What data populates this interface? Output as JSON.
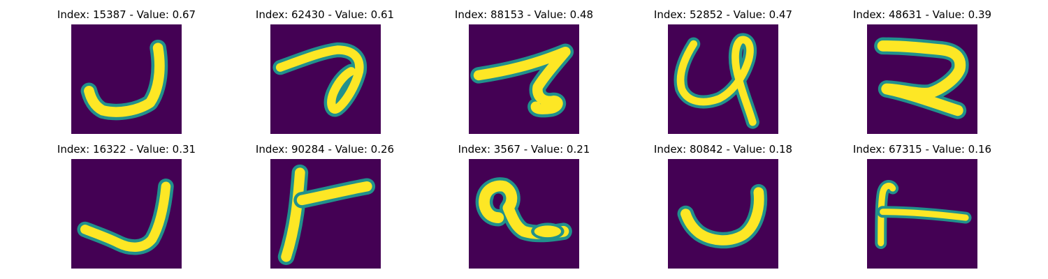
{
  "figure": {
    "colors": {
      "background": "#440154",
      "mid": "#21918c",
      "stroke": "#fde725"
    },
    "panels": [
      {
        "index": "15387",
        "value": "0.67",
        "title": "Index: 15387 - Value: 0.67"
      },
      {
        "index": "62430",
        "value": "0.61",
        "title": "Index: 62430 - Value: 0.61"
      },
      {
        "index": "88153",
        "value": "0.48",
        "title": "Index: 88153 - Value: 0.48"
      },
      {
        "index": "52852",
        "value": "0.47",
        "title": "Index: 52852 - Value: 0.47"
      },
      {
        "index": "48631",
        "value": "0.39",
        "title": "Index: 48631 - Value: 0.39"
      },
      {
        "index": "16322",
        "value": "0.31",
        "title": "Index: 16322 - Value: 0.31"
      },
      {
        "index": "90284",
        "value": "0.26",
        "title": "Index: 90284 - Value: 0.26"
      },
      {
        "index": "3567",
        "value": "0.21",
        "title": "Index: 3567 - Value: 0.21"
      },
      {
        "index": "80842",
        "value": "0.18",
        "title": "Index: 80842 - Value: 0.18"
      },
      {
        "index": "67315",
        "value": "0.16",
        "title": "Index: 67315 - Value: 0.16"
      }
    ]
  }
}
